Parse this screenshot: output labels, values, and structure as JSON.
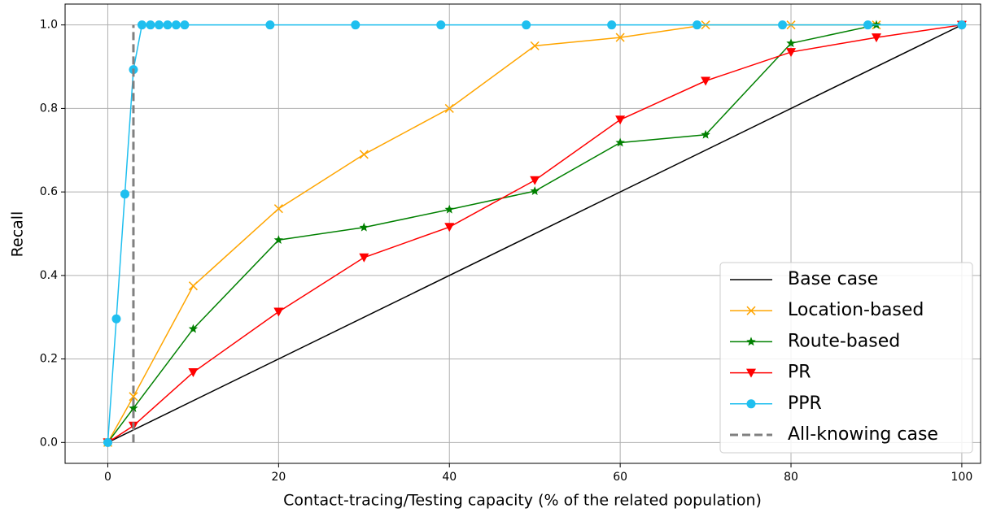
{
  "chart_data": {
    "type": "line",
    "xlabel": "Contact-tracing/Testing capacity (% of the related population)",
    "ylabel": "Recall",
    "xlim": [
      -5,
      102.2
    ],
    "ylim": [
      -0.05,
      1.05
    ],
    "xticks": [
      0,
      20,
      40,
      60,
      80,
      100
    ],
    "yticks": [
      {
        "value": 0,
        "label": "0.0"
      },
      0.2,
      0.4,
      0.6,
      0.8,
      {
        "value": 1,
        "label": "1.0"
      }
    ],
    "grid": true,
    "legend": "lower right",
    "series": [
      {
        "name": "Base case",
        "color": "#000000",
        "marker": "none",
        "x": [
          0,
          100
        ],
        "values": [
          0,
          1
        ]
      },
      {
        "name": "Location-based",
        "color": "#ffa500",
        "marker": "x",
        "x": [
          0,
          3,
          10,
          20,
          30,
          40,
          50,
          60,
          70,
          80,
          90
        ],
        "values": [
          0,
          0.11,
          0.375,
          0.56,
          0.69,
          0.8,
          0.95,
          0.97,
          1.0,
          1.0,
          1.0
        ]
      },
      {
        "name": "Route-based",
        "color": "#008000",
        "marker": "star",
        "x": [
          0,
          3,
          10,
          20,
          30,
          40,
          50,
          60,
          70,
          80,
          90
        ],
        "values": [
          0,
          0.082,
          0.272,
          0.485,
          0.515,
          0.558,
          0.602,
          0.718,
          0.737,
          0.956,
          1.0
        ]
      },
      {
        "name": "PR",
        "color": "#ff0000",
        "marker": "triangle-down",
        "x": [
          0,
          3,
          10,
          20,
          30,
          40,
          50,
          60,
          70,
          80,
          90,
          100
        ],
        "values": [
          0,
          0.04,
          0.168,
          0.313,
          0.443,
          0.516,
          0.628,
          0.773,
          0.866,
          0.935,
          0.97,
          1.0
        ]
      },
      {
        "name": "PPR",
        "color": "#1fbfef",
        "marker": "circle",
        "x": [
          0,
          1,
          2,
          3,
          4,
          5,
          6,
          7,
          8,
          9,
          19,
          29,
          39,
          49,
          59,
          69,
          79,
          89,
          100
        ],
        "values": [
          0,
          0.296,
          0.595,
          0.893,
          1,
          1,
          1,
          1,
          1,
          1,
          1,
          1,
          1,
          1,
          1,
          1,
          1,
          1,
          1
        ]
      },
      {
        "name": "All-knowing case",
        "color": "#808080",
        "marker": "none",
        "dashed": true,
        "x": [
          3,
          3
        ],
        "values": [
          0,
          1
        ]
      }
    ]
  }
}
